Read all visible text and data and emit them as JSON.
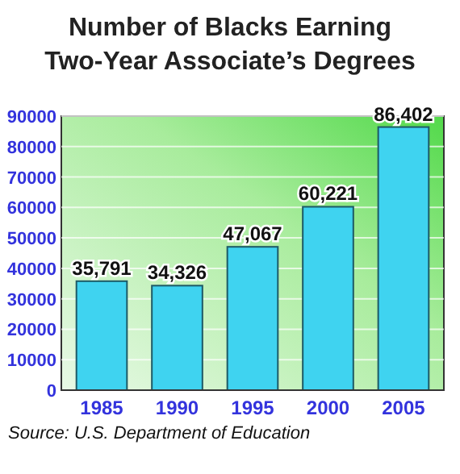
{
  "chart_data": {
    "type": "bar",
    "title": "Number of Blacks Earning Two-Year Associate’s Degrees",
    "categories": [
      "1985",
      "1990",
      "1995",
      "2000",
      "2005"
    ],
    "values": [
      35791,
      34326,
      47067,
      60221,
      86402
    ],
    "value_labels": [
      "35,791",
      "34,326",
      "47,067",
      "60,221",
      "86,402"
    ],
    "color": "#3fd3f0",
    "ylim": [
      0,
      90000
    ],
    "yticks": [
      0,
      10000,
      20000,
      30000,
      40000,
      50000,
      60000,
      70000,
      80000,
      90000
    ],
    "grid": "y",
    "annotations": [
      "Source: U.S. Department of Education"
    ]
  }
}
